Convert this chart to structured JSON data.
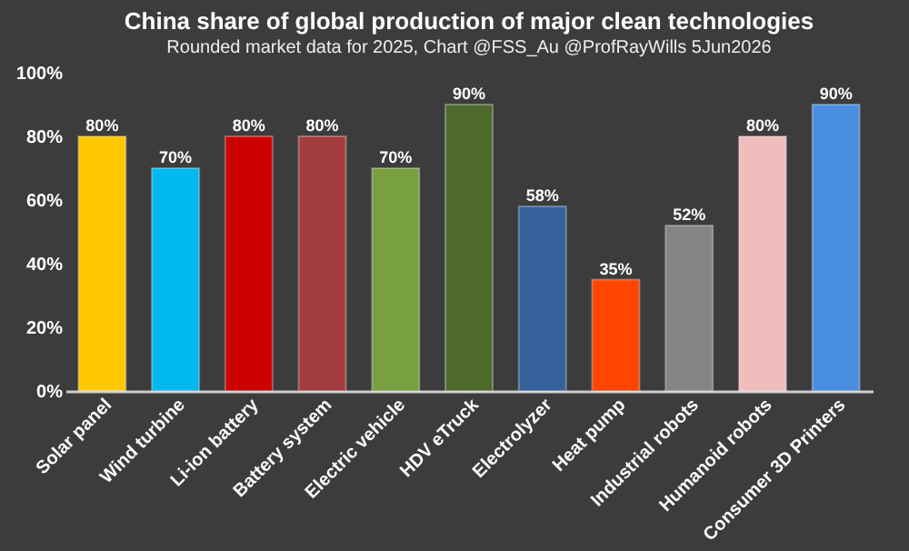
{
  "chart_data": {
    "type": "bar",
    "title": "China share of global production of major clean technologies",
    "subtitle": "Rounded market data for 2025, Chart @FSS_Au @ProfRayWills 5Jun2026",
    "categories": [
      "Solar panel",
      "Wind turbine",
      "Li-ion battery",
      "Battery system",
      "Electric vehicle",
      "HDV eTruck",
      "Electrolyzer",
      "Heat pump",
      "Industrial robots",
      "Humanoid robots",
      "Consumer 3D Printers"
    ],
    "values": [
      80,
      70,
      80,
      80,
      70,
      90,
      58,
      35,
      52,
      80,
      90
    ],
    "colors": [
      "#ffc800",
      "#00b8f0",
      "#cc0000",
      "#a33c3c",
      "#78a040",
      "#4e6a2a",
      "#34619a",
      "#ff4500",
      "#858585",
      "#f0bcbc",
      "#4a8ee0"
    ],
    "value_labels": [
      "80%",
      "70%",
      "80%",
      "80%",
      "70%",
      "90%",
      "58%",
      "35%",
      "52%",
      "80%",
      "90%"
    ],
    "ylim": [
      0,
      100
    ],
    "yticks": [
      {
        "value": 0,
        "label": "0%"
      },
      {
        "value": 20,
        "label": "20%"
      },
      {
        "value": 40,
        "label": "40%"
      },
      {
        "value": 60,
        "label": "60%"
      },
      {
        "value": 80,
        "label": "80%"
      },
      {
        "value": 100,
        "label": "100%"
      }
    ],
    "grid": false
  }
}
